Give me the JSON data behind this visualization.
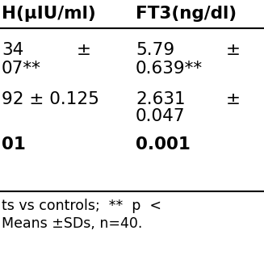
{
  "header_row": [
    "H(μIU/ml)",
    "FT3(ng/dl)"
  ],
  "r1c1_val": "34",
  "r1c1_pm": "±",
  "r1c2_val": "5.79",
  "r1c2_pm": "±",
  "r2c1": "07**",
  "r2c2": "0.639**",
  "r3c1": "92 ± 0.125",
  "r3c2_line1": "2.631",
  "r3c2_pm": "±",
  "r3c2_line2": "0.047",
  "r4c1": "01",
  "r4c2": "0.001",
  "footer1": "ts vs controls;  **  p  <",
  "footer2": "Means ±SDs, n=40.",
  "bg_color": "#ffffff",
  "text_color": "#000000",
  "line_color": "#000000"
}
